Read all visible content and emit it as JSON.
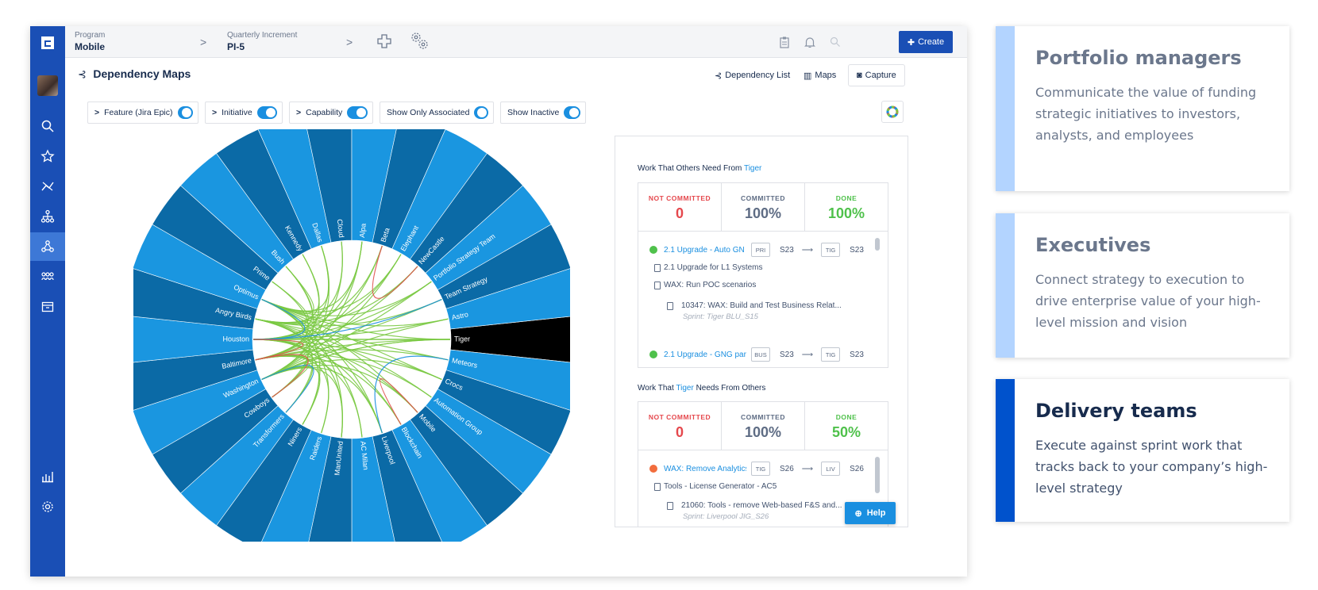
{
  "app": {
    "breadcrumb": [
      {
        "label": "Program",
        "value": "Mobile"
      },
      {
        "label": "Quarterly Increment",
        "value": "PI-5"
      }
    ],
    "create_label": "Create",
    "page_title": "Dependency Maps",
    "tools": [
      "Dependency List",
      "Maps",
      "Capture"
    ],
    "filters": [
      {
        "label": "Feature (Jira Epic)",
        "chevron": true,
        "on": true
      },
      {
        "label": "Initiative",
        "chevron": true,
        "on": true
      },
      {
        "label": "Capability",
        "chevron": true,
        "on": true
      },
      {
        "label": "Show Only Associated",
        "chevron": false,
        "on": true
      },
      {
        "label": "Show Inactive",
        "chevron": false,
        "on": true
      }
    ],
    "help_label": "Help"
  },
  "chord": {
    "teams": [
      "Tiger",
      "Meteors",
      "Crocs",
      "Automation Group",
      "Mobile",
      "Blockchain",
      "Liverpool",
      "AC Milan",
      "ManUnited",
      "Raiders",
      "Niners",
      "Transformers",
      "Cowboys",
      "Washington",
      "Baltimore",
      "Houston",
      "Angry Birds",
      "Optimus",
      "Prime",
      "Bush",
      "Kennedy",
      "Dallas",
      "Cloud",
      "Alpa",
      "Beta",
      "Elephant",
      "NewCastle",
      "Portfolio Strategy Team",
      "Team Strategy",
      "Astro"
    ],
    "selected": "Tiger",
    "colors": {
      "dark": "#0b6aa6",
      "light": "#1a96e0",
      "selected": "#000000",
      "green": "#7ac943",
      "red": "#e0504d",
      "blue": "#1a8fe0"
    }
  },
  "panel": {
    "outgoing": {
      "title_prefix": "Work That Others Need From",
      "team": "Tiger",
      "stats": [
        {
          "label": "NOT COMMITTED",
          "value": "0"
        },
        {
          "label": "COMMITTED",
          "value": "100%"
        },
        {
          "label": "DONE",
          "value": "100%"
        }
      ],
      "items": [
        {
          "name": "2.1 Upgrade - Auto GN",
          "from_tag": "PRI",
          "from_sprint": "S23",
          "to_tag": "TIG",
          "to_sprint": "S23"
        },
        {
          "sub": "2.1 Upgrade for L1 Systems"
        },
        {
          "sub": "WAX: Run POC scenarios"
        },
        {
          "story": "10347: WAX: Build and Test Business Relat...",
          "sprint": "Sprint: Tiger BLU_S15"
        },
        {
          "name": "2.1 Upgrade - GNG par",
          "from_tag": "BUS",
          "from_sprint": "S23",
          "to_tag": "TIG",
          "to_sprint": "S23"
        }
      ]
    },
    "incoming": {
      "title_prefix": "Work That",
      "team": "Tiger",
      "title_suffix": "Needs From Others",
      "stats": [
        {
          "label": "NOT COMMITTED",
          "value": "0"
        },
        {
          "label": "COMMITTED",
          "value": "100%"
        },
        {
          "label": "DONE",
          "value": "50%"
        }
      ],
      "items": [
        {
          "name": "WAX: Remove Analytics",
          "from_tag": "TIG",
          "from_sprint": "S26",
          "to_tag": "LIV",
          "to_sprint": "S26"
        },
        {
          "sub": "Tools - License Generator - AC5"
        },
        {
          "story": "21060: Tools - remove Web-based F&S and...",
          "sprint": "Sprint: Liverpool JIG_S26"
        }
      ]
    }
  },
  "cards": [
    {
      "title": "Portfolio managers",
      "text": "Communicate the value of funding strategic initiatives to investors, analysts, and employees"
    },
    {
      "title": "Executives",
      "text": "Connect strategy to execution to drive enterprise value of your high-level mission and vision"
    },
    {
      "title": "Delivery teams",
      "text": "Execute against sprint work that tracks back to your company’s high-level strategy"
    }
  ]
}
